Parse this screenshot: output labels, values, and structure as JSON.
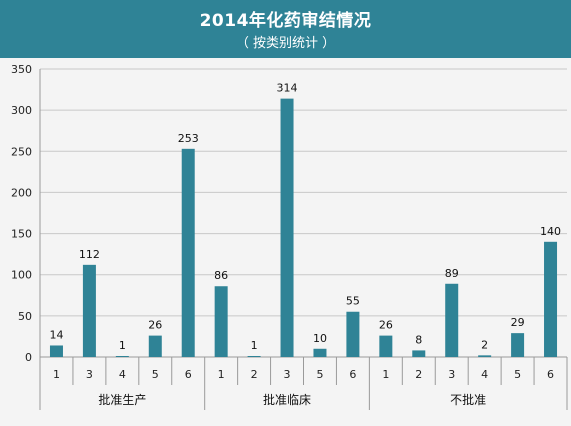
{
  "header": {
    "title": "2014年化药审结情况",
    "subtitle": "（ 按类别统计 ）"
  },
  "colors": {
    "header_bg": "#2f8396",
    "bar": "#2f8396",
    "gridline": "#c8c8c8",
    "axis": "#9a9a9a"
  },
  "chart_data": {
    "type": "bar",
    "title": "2014年化药审结情况",
    "subtitle": "（ 按类别统计 ）",
    "xlabel": "",
    "ylabel": "",
    "ylim": [
      0,
      350
    ],
    "yticks": [
      0,
      50,
      100,
      150,
      200,
      250,
      300,
      350
    ],
    "grid": true,
    "legend": "none",
    "groups": [
      {
        "name": "批准生产",
        "categories": [
          "1",
          "3",
          "4",
          "5",
          "6"
        ],
        "values": [
          14,
          112,
          1,
          26,
          253
        ]
      },
      {
        "name": "批准临床",
        "categories": [
          "1",
          "2",
          "3",
          "5",
          "6"
        ],
        "values": [
          86,
          1,
          314,
          10,
          55
        ]
      },
      {
        "name": "不批准",
        "categories": [
          "1",
          "2",
          "3",
          "4",
          "5",
          "6"
        ],
        "values": [
          26,
          8,
          89,
          2,
          29,
          140
        ]
      }
    ]
  }
}
